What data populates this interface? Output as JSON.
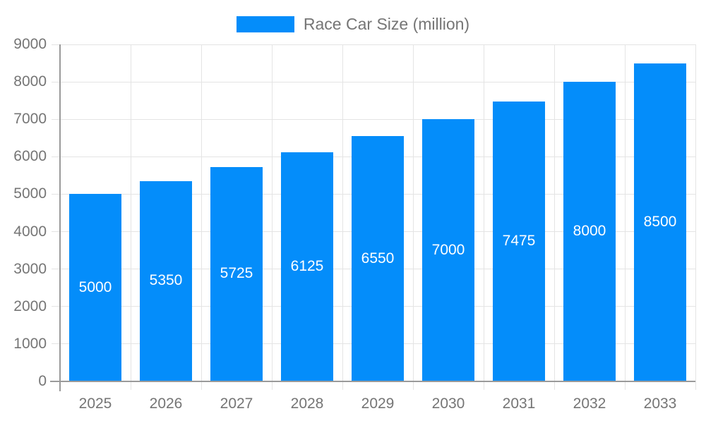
{
  "legend": {
    "series_label": "Race Car Size (million)"
  },
  "chart_data": {
    "type": "bar",
    "title": "Race Car Size (million)",
    "series_name": "Race Car Size (million)",
    "categories": [
      "2025",
      "2026",
      "2027",
      "2028",
      "2029",
      "2030",
      "2031",
      "2032",
      "2033"
    ],
    "values": [
      5000,
      5350,
      5725,
      6125,
      6550,
      7000,
      7475,
      8000,
      8500
    ],
    "value_labels": [
      "5000",
      "5350",
      "5725",
      "6125",
      "6550",
      "7000",
      "7475",
      "8000",
      "8500"
    ],
    "y_tick_labels": [
      "0",
      "1000",
      "2000",
      "3000",
      "4000",
      "5000",
      "6000",
      "7000",
      "8000",
      "9000"
    ],
    "xlabel": "",
    "ylabel": "",
    "ylim": [
      0,
      9000
    ],
    "ytick_step": 1000,
    "grid": true,
    "legend_position": "top-center",
    "colors": {
      "bar": "#048DFA",
      "value_label": "#ffffff",
      "axis_text": "#757575",
      "grid_line": "#e4e4e4",
      "axis_line": "#9a9a9a",
      "background": "#ffffff"
    }
  }
}
